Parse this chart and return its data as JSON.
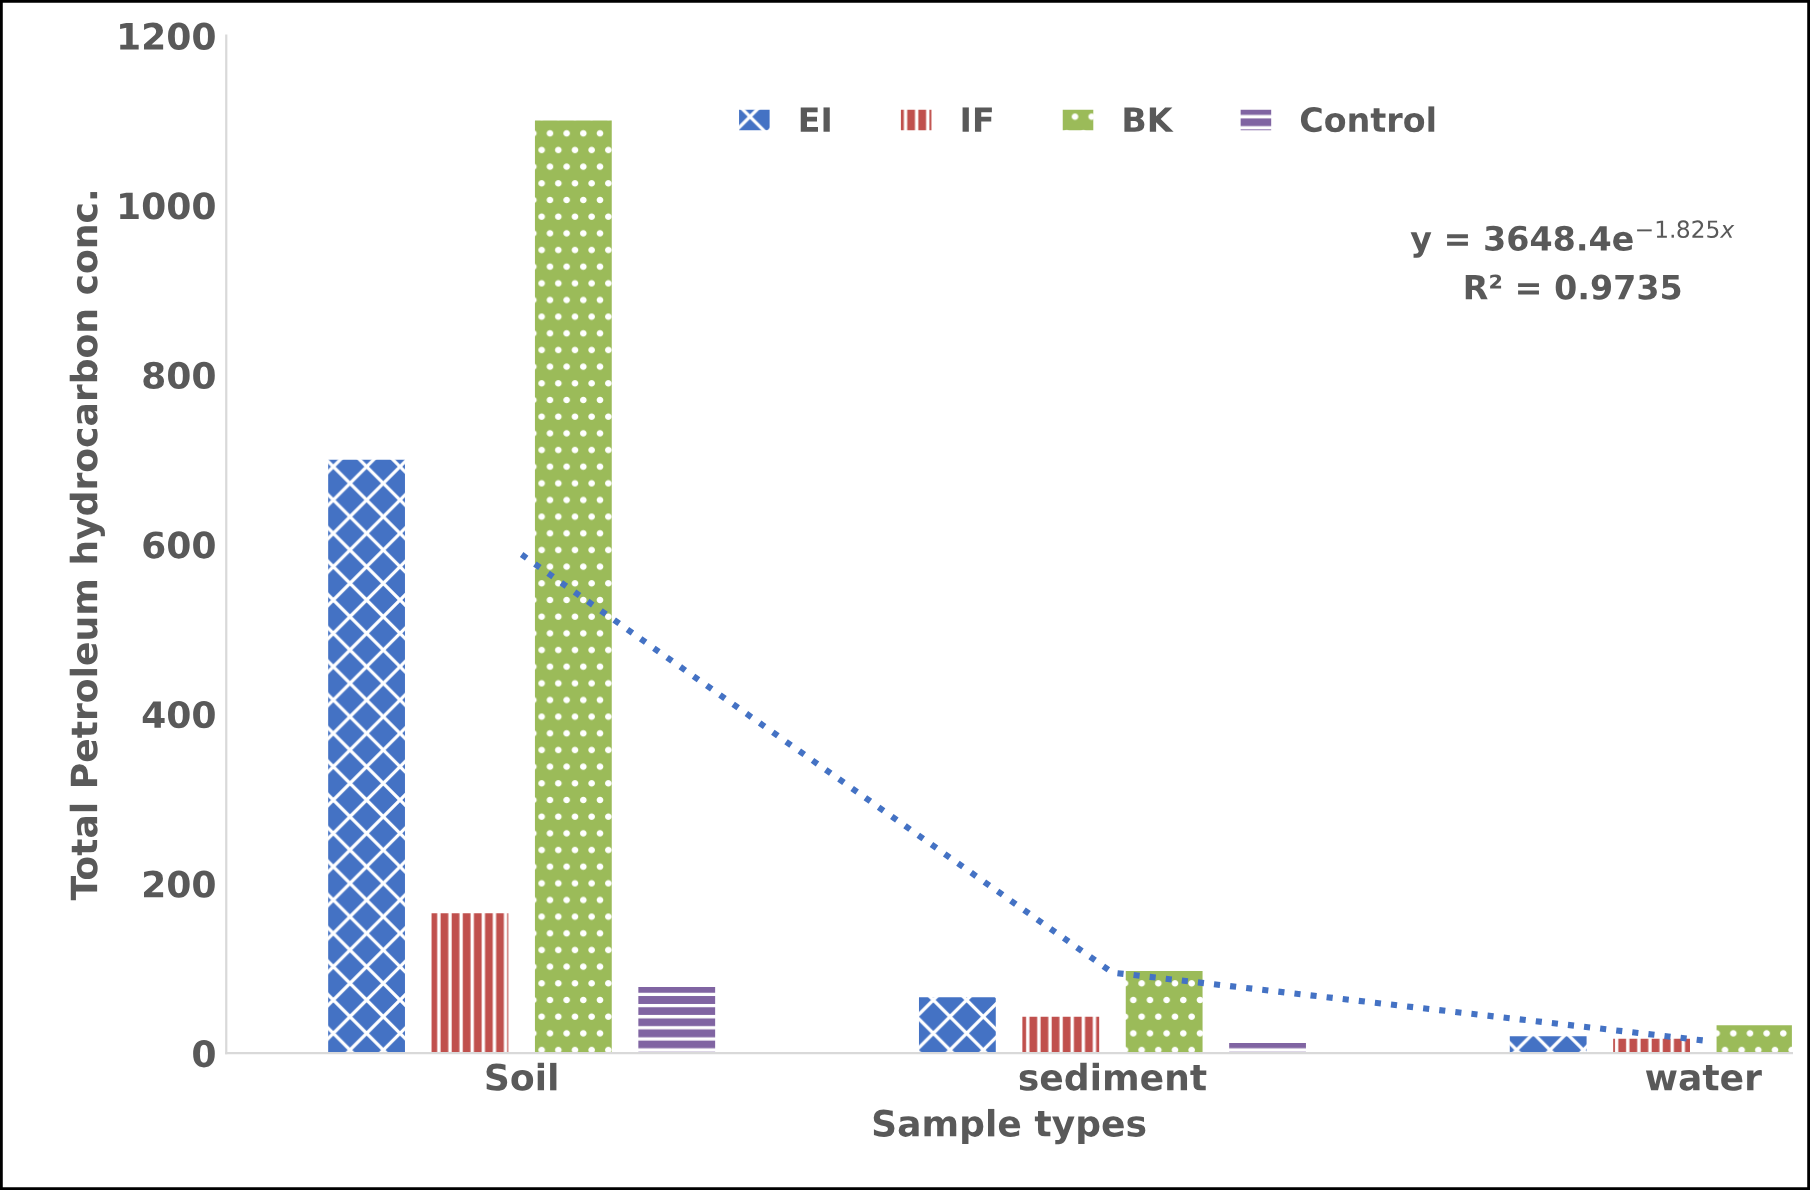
{
  "chart_data": {
    "type": "bar",
    "xlabel": "Sample types",
    "ylabel": "Total Petroleum hydrocarbon conc.",
    "categories": [
      "Soil",
      "sediment",
      "water"
    ],
    "series": [
      {
        "name": "EI",
        "color": "#4472c4",
        "values": [
          700,
          66,
          20
        ]
      },
      {
        "name": "IF",
        "color": "#c0504d",
        "values": [
          165,
          43,
          17
        ]
      },
      {
        "name": "BK",
        "color": "#9bbb59",
        "values": [
          1100,
          97,
          33
        ]
      },
      {
        "name": "Control",
        "color": "#8064a2",
        "values": [
          78,
          12,
          0
        ]
      },
      {
        "type": "line",
        "color": "#4472c4",
        "line_style": "dotted",
        "values": [
          588,
          95,
          15
        ]
      }
    ],
    "ylim": [
      0,
      1200
    ],
    "yticks": [
      0,
      200,
      400,
      600,
      800,
      1000,
      1200
    ],
    "grid": false,
    "legend": "top",
    "annotations": [
      "y = 3648.4e$^{−1.825x}$",
      "R² = 0.9735"
    ]
  }
}
